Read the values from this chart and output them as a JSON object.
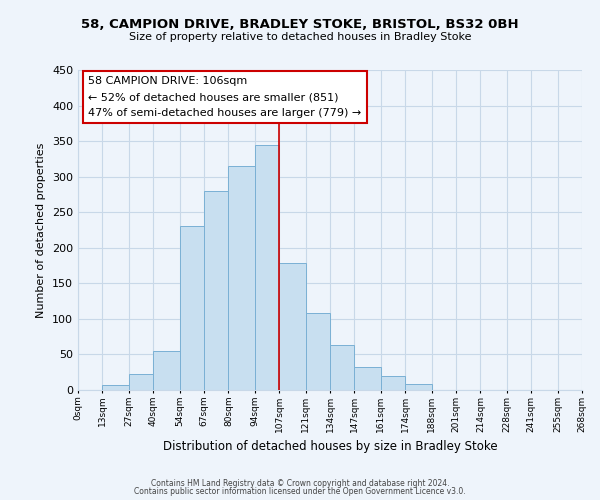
{
  "title": "58, CAMPION DRIVE, BRADLEY STOKE, BRISTOL, BS32 0BH",
  "subtitle": "Size of property relative to detached houses in Bradley Stoke",
  "xlabel": "Distribution of detached houses by size in Bradley Stoke",
  "ylabel": "Number of detached properties",
  "bar_color": "#c8dff0",
  "bar_edge_color": "#7ab0d4",
  "grid_color": "#c8d8e8",
  "background_color": "#eef4fb",
  "vline_x": 107,
  "vline_color": "#cc0000",
  "bin_edges": [
    0,
    13,
    27,
    40,
    54,
    67,
    80,
    94,
    107,
    121,
    134,
    147,
    161,
    174,
    188,
    201,
    214,
    228,
    241,
    255,
    268
  ],
  "bin_heights": [
    0,
    7,
    22,
    55,
    230,
    280,
    315,
    345,
    178,
    108,
    63,
    33,
    20,
    8,
    0,
    0,
    0,
    0,
    0,
    0
  ],
  "tick_labels": [
    "0sqm",
    "13sqm",
    "27sqm",
    "40sqm",
    "54sqm",
    "67sqm",
    "80sqm",
    "94sqm",
    "107sqm",
    "121sqm",
    "134sqm",
    "147sqm",
    "161sqm",
    "174sqm",
    "188sqm",
    "201sqm",
    "214sqm",
    "228sqm",
    "241sqm",
    "255sqm",
    "268sqm"
  ],
  "ylim": [
    0,
    450
  ],
  "yticks": [
    0,
    50,
    100,
    150,
    200,
    250,
    300,
    350,
    400,
    450
  ],
  "annotation_title": "58 CAMPION DRIVE: 106sqm",
  "annotation_line1": "← 52% of detached houses are smaller (851)",
  "annotation_line2": "47% of semi-detached houses are larger (779) →",
  "annotation_box_facecolor": "#ffffff",
  "annotation_box_edgecolor": "#cc0000",
  "footnote1": "Contains HM Land Registry data © Crown copyright and database right 2024.",
  "footnote2": "Contains public sector information licensed under the Open Government Licence v3.0."
}
